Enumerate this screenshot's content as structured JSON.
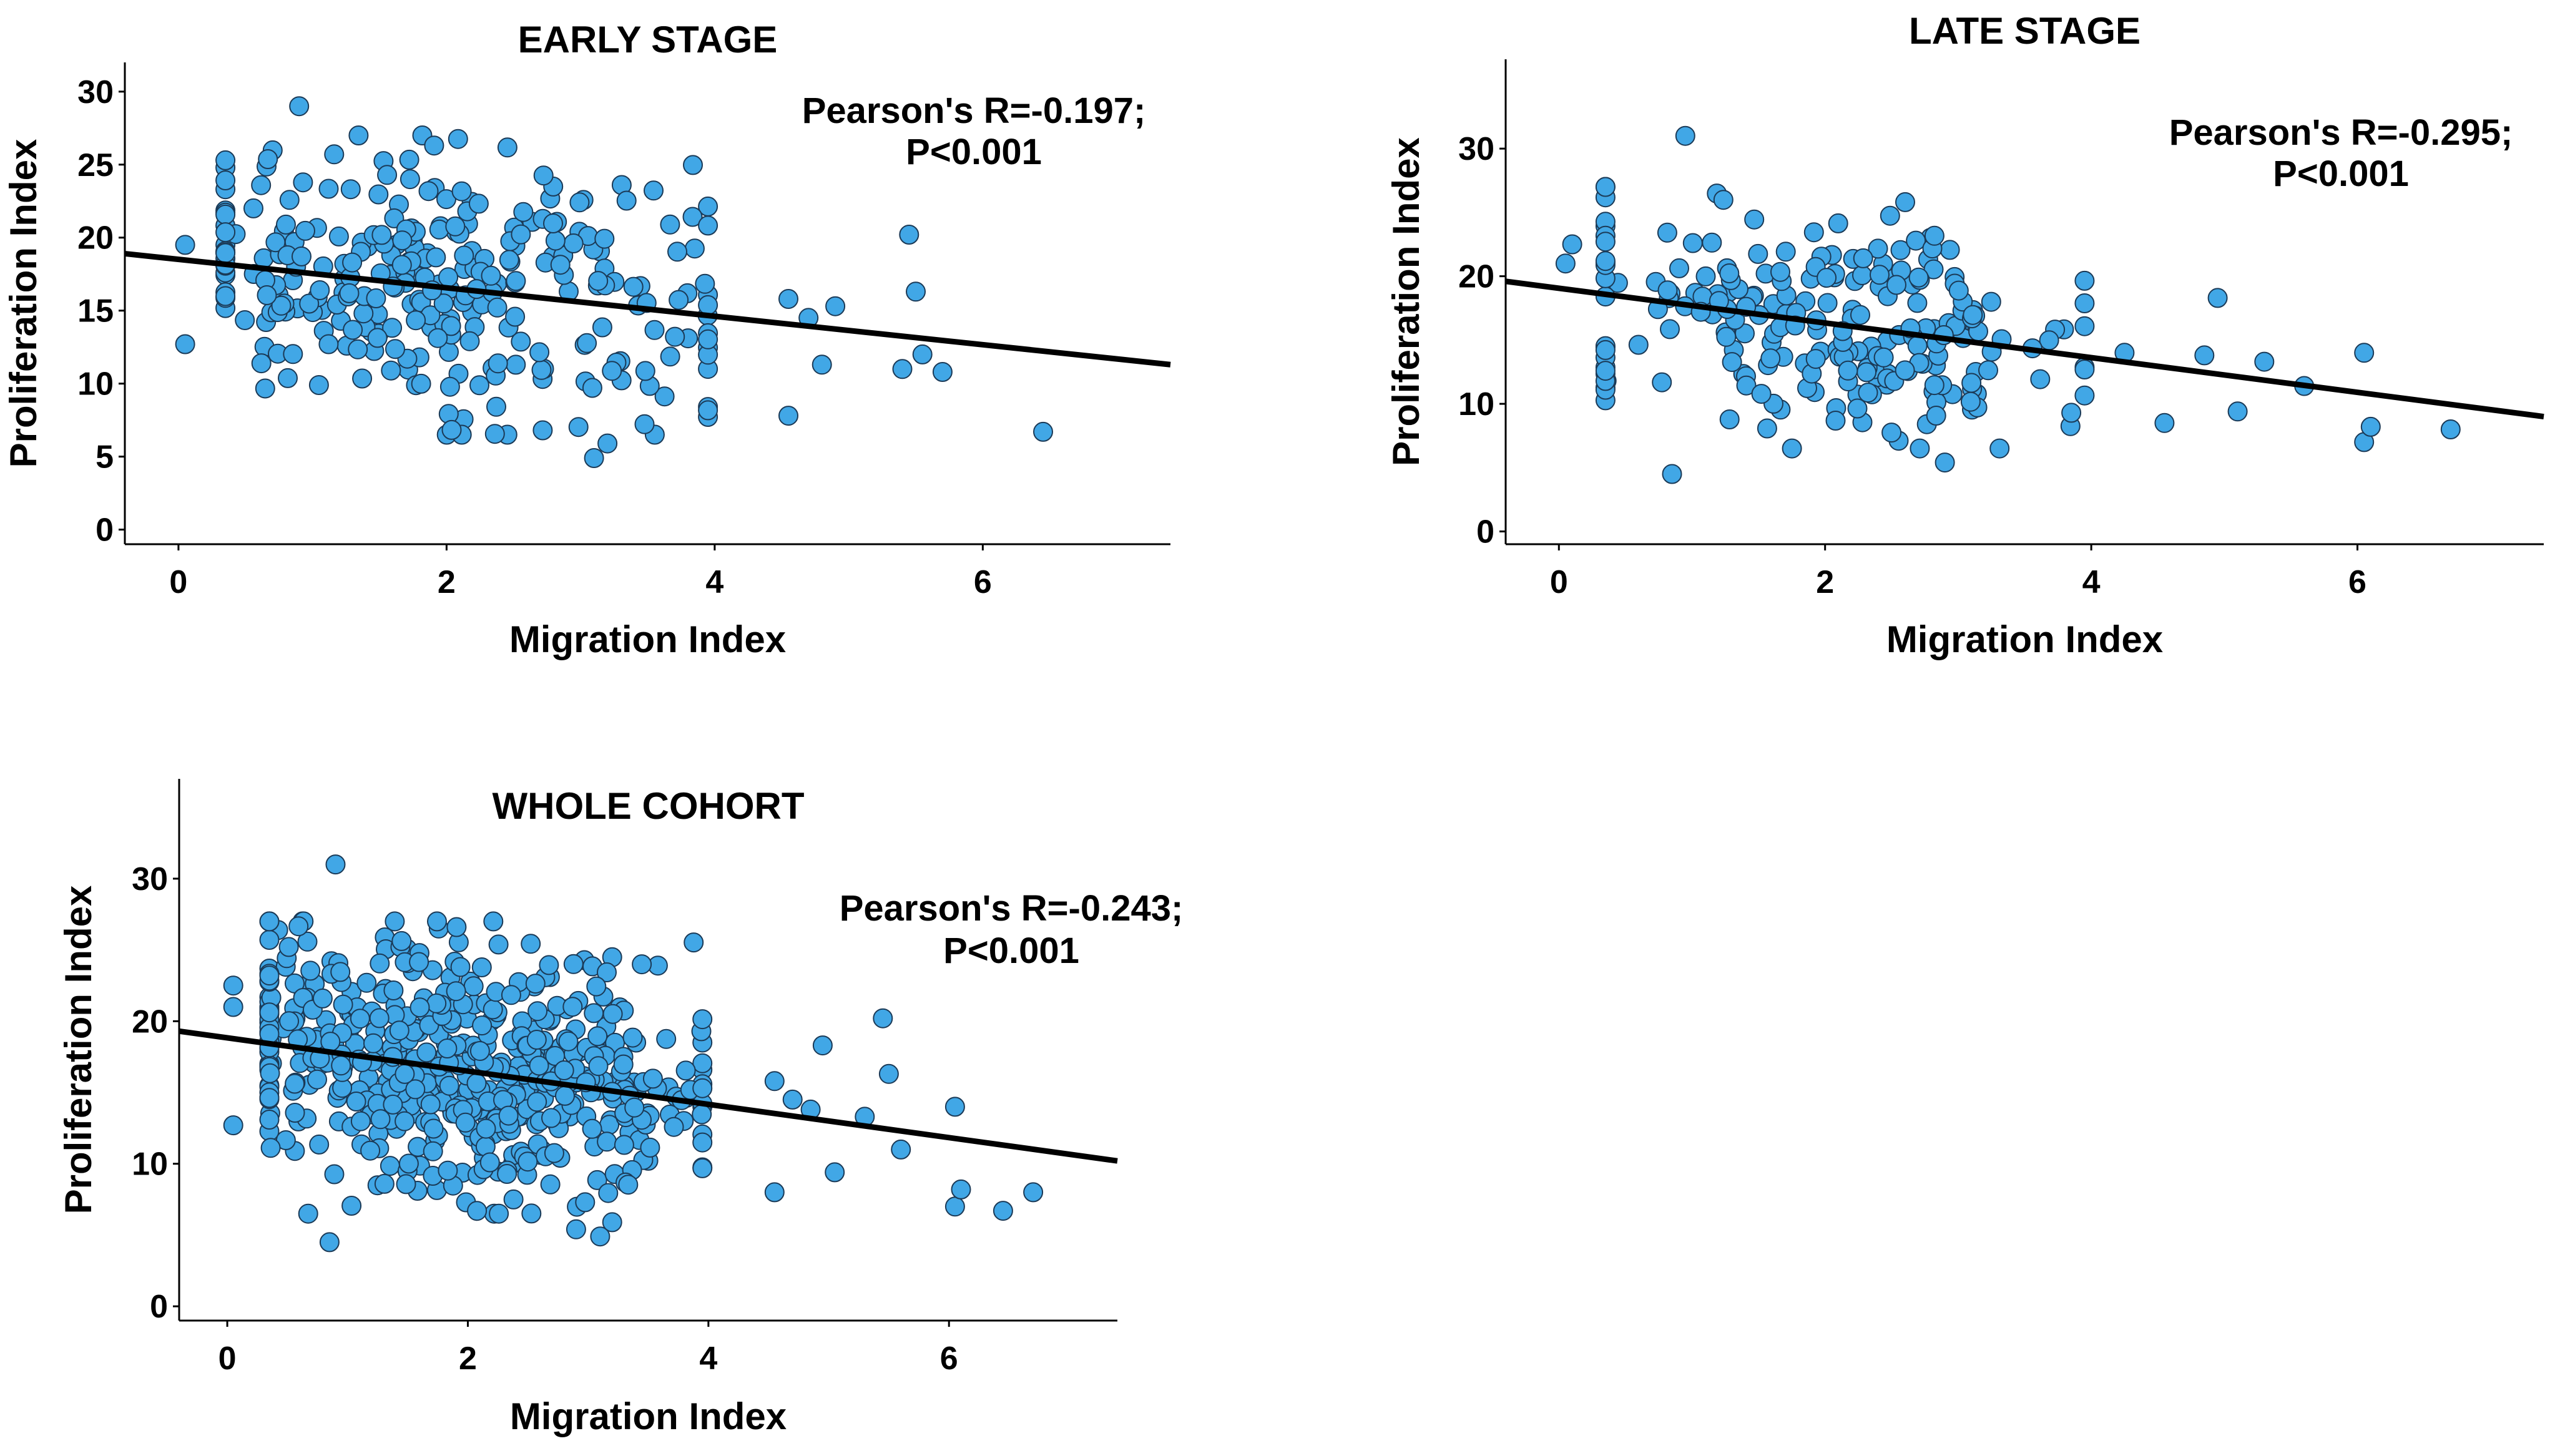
{
  "colors": {
    "marker_fill": "#41A7E6",
    "marker_edge": "#1B3A57",
    "fit_line": "#000000"
  },
  "chart_data": [
    {
      "id": "early",
      "type": "scatter",
      "title": "EARLY STAGE",
      "xlabel": "Migration Index",
      "ylabel": "Proliferation Index",
      "xlim": [
        -0.4,
        7.4
      ],
      "ylim": [
        -1,
        32
      ],
      "xticks": [
        0,
        2,
        4,
        6
      ],
      "yticks": [
        0,
        5,
        10,
        15,
        20,
        25,
        30
      ],
      "grid": false,
      "annotation": [
        "Pearson's R=-0.197;",
        "P<0.001"
      ],
      "fit_line": {
        "x": [
          -0.4,
          7.4
        ],
        "y": [
          18.9,
          11.3
        ]
      },
      "points": {
        "count": 320,
        "x_mean": 1.95,
        "x_sd": 1.1,
        "y_mean": 17.0,
        "y_sd": 4.5,
        "r": -0.197,
        "outliers": [
          [
            0.9,
            29.0
          ],
          [
            5.45,
            20.2
          ],
          [
            5.5,
            16.3
          ],
          [
            5.55,
            12.0
          ],
          [
            5.4,
            11.0
          ],
          [
            5.7,
            10.8
          ],
          [
            6.45,
            6.7
          ],
          [
            4.55,
            7.8
          ],
          [
            4.55,
            15.8
          ],
          [
            4.7,
            14.5
          ],
          [
            4.9,
            15.3
          ],
          [
            4.8,
            11.3
          ],
          [
            3.1,
            4.9
          ],
          [
            3.2,
            5.9
          ],
          [
            0.05,
            12.7
          ],
          [
            0.05,
            19.5
          ]
        ]
      }
    },
    {
      "id": "late",
      "type": "scatter",
      "title": "LATE STAGE",
      "xlabel": "Migration Index",
      "ylabel": "Proliferation Index",
      "xlim": [
        -0.4,
        7.4
      ],
      "ylim": [
        -1,
        37
      ],
      "xticks": [
        0,
        2,
        4,
        6
      ],
      "yticks": [
        0,
        10,
        20,
        30
      ],
      "grid": false,
      "annotation": [
        "Pearson's R=-0.295;",
        "P<0.001"
      ],
      "fit_line": {
        "x": [
          -0.4,
          7.4
        ],
        "y": [
          19.6,
          9.0
        ]
      },
      "points": {
        "count": 250,
        "x_mean": 2.0,
        "x_sd": 1.05,
        "y_mean": 16.5,
        "y_sd": 4.5,
        "r": -0.295,
        "outliers": [
          [
            0.95,
            31.0
          ],
          [
            0.85,
            4.5
          ],
          [
            0.05,
            21.0
          ],
          [
            0.1,
            22.5
          ],
          [
            6.7,
            8.0
          ],
          [
            6.05,
            7.0
          ],
          [
            6.1,
            8.2
          ],
          [
            6.05,
            14.0
          ],
          [
            5.6,
            11.4
          ],
          [
            5.3,
            13.3
          ],
          [
            5.1,
            9.4
          ],
          [
            4.95,
            18.3
          ],
          [
            4.85,
            13.8
          ],
          [
            4.55,
            8.5
          ],
          [
            4.25,
            14.0
          ],
          [
            3.85,
            9.3
          ],
          [
            2.9,
            5.4
          ]
        ]
      }
    },
    {
      "id": "whole",
      "type": "scatter",
      "title": "WHOLE COHORT",
      "xlabel": "Migration Index",
      "ylabel": "Proliferation Index",
      "xlim": [
        -0.4,
        7.4
      ],
      "ylim": [
        -1,
        37
      ],
      "xticks": [
        0,
        2,
        4,
        6
      ],
      "yticks": [
        0,
        10,
        20,
        30
      ],
      "grid": false,
      "annotation": [
        "Pearson's R=-0.243;",
        "P<0.001"
      ],
      "fit_line": {
        "x": [
          -0.4,
          7.4
        ],
        "y": [
          19.3,
          10.2
        ]
      },
      "points": {
        "count": 570,
        "x_mean": 1.97,
        "x_sd": 1.08,
        "y_mean": 16.8,
        "y_sd": 4.5,
        "r": -0.243,
        "outliers": [
          [
            0.9,
            31.0
          ],
          [
            0.85,
            4.5
          ],
          [
            0.05,
            12.7
          ],
          [
            0.05,
            21.0
          ],
          [
            0.05,
            22.5
          ],
          [
            6.7,
            8.0
          ],
          [
            6.45,
            6.7
          ],
          [
            6.05,
            7.0
          ],
          [
            6.1,
            8.2
          ],
          [
            6.05,
            14.0
          ],
          [
            5.6,
            11.0
          ],
          [
            5.45,
            20.2
          ],
          [
            5.5,
            16.3
          ],
          [
            5.3,
            13.3
          ],
          [
            5.05,
            9.4
          ],
          [
            4.95,
            18.3
          ],
          [
            4.85,
            13.8
          ],
          [
            4.55,
            8.0
          ],
          [
            4.55,
            15.8
          ],
          [
            4.7,
            14.5
          ],
          [
            3.1,
            4.9
          ],
          [
            3.2,
            5.9
          ],
          [
            2.9,
            5.4
          ]
        ]
      }
    }
  ]
}
